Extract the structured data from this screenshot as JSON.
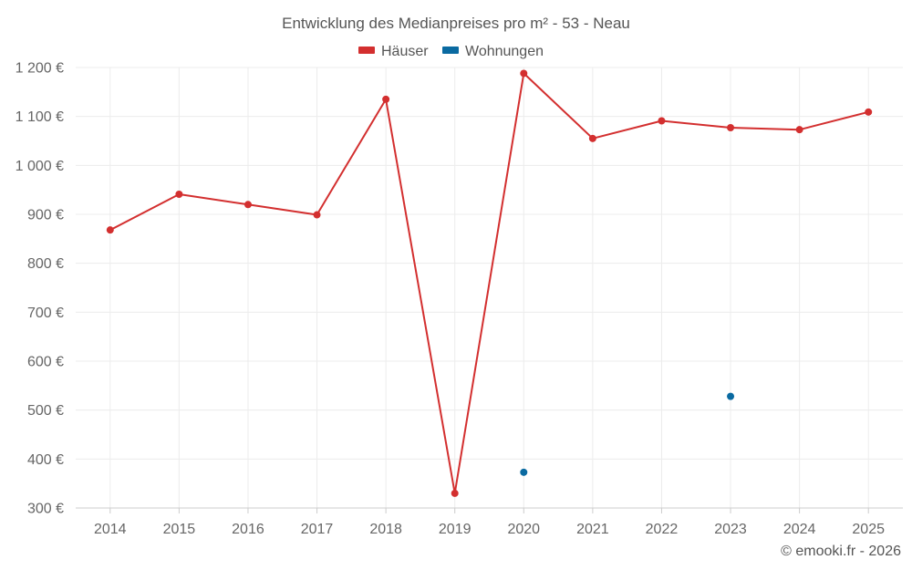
{
  "chart_data": {
    "type": "line",
    "title": "Entwicklung des Medianpreises pro m² - 53 - Neau",
    "xlabel": "",
    "ylabel": "",
    "categories": [
      "2014",
      "2015",
      "2016",
      "2017",
      "2018",
      "2019",
      "2020",
      "2021",
      "2022",
      "2023",
      "2024",
      "2025"
    ],
    "ylim": [
      300,
      1200
    ],
    "yticks": [
      300,
      400,
      500,
      600,
      700,
      800,
      900,
      1000,
      1100,
      1200
    ],
    "ytick_labels": [
      "300 €",
      "400 €",
      "500 €",
      "600 €",
      "700 €",
      "800 €",
      "900 €",
      "1 000 €",
      "1 100 €",
      "1 200 €"
    ],
    "legend_position": "top-center",
    "series": [
      {
        "name": "Häuser",
        "color": "#d32f2f",
        "mode": "lines+markers",
        "values": [
          868,
          941,
          920,
          899,
          1135,
          330,
          1188,
          1055,
          1091,
          1077,
          1073,
          1109
        ]
      },
      {
        "name": "Wohnungen",
        "color": "#0a6aa1",
        "mode": "markers",
        "values": [
          null,
          null,
          null,
          null,
          null,
          null,
          373,
          null,
          null,
          528,
          null,
          null
        ]
      }
    ]
  },
  "credit": "© emooki.fr - 2026"
}
